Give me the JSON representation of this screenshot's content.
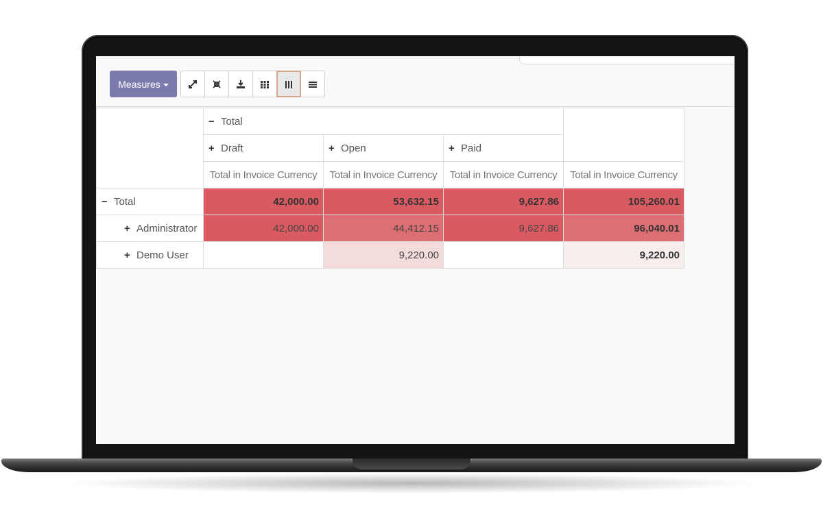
{
  "toolbar": {
    "measures_label": "Measures",
    "buttons": [
      {
        "icon": "expand-icon"
      },
      {
        "icon": "collapse-arrows-icon"
      },
      {
        "icon": "download-icon"
      },
      {
        "icon": "grid-icon"
      },
      {
        "icon": "columns-icon",
        "active": true
      },
      {
        "icon": "list-icon"
      }
    ]
  },
  "pivot": {
    "col_group_header": "Total",
    "col_groups": [
      "Draft",
      "Open",
      "Paid"
    ],
    "measure_label": "Total in Invoice Currency",
    "rows": [
      {
        "label": "Total",
        "expanded": true,
        "values": [
          "42,000.00",
          "53,632.15",
          "9,627.86"
        ],
        "total": "105,260.01"
      },
      {
        "label": "Administrator",
        "expanded": false,
        "values": [
          "42,000.00",
          "44,412.15",
          "9,627.86"
        ],
        "total": "96,040.01"
      },
      {
        "label": "Demo User",
        "expanded": false,
        "values": [
          "",
          "9,220.00",
          ""
        ],
        "total": "9,220.00"
      }
    ]
  },
  "colors": {
    "measures_button": "#7c7bad",
    "heat_strong": "#d95a60",
    "heat_mid": "#dd6e73",
    "heat_light": "#f4dcdd"
  }
}
